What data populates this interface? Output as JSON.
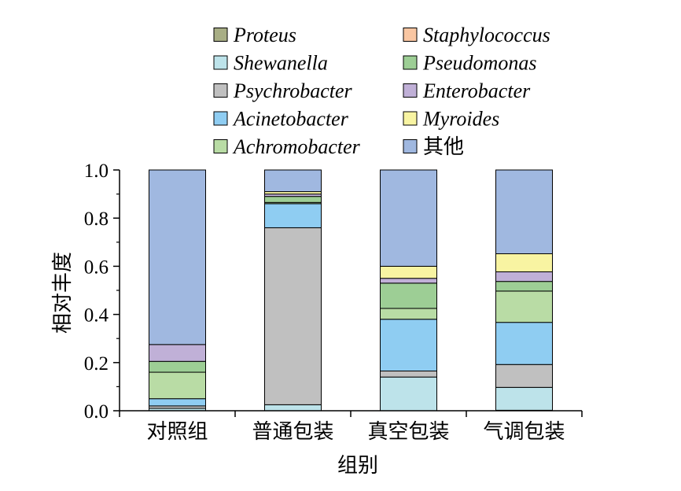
{
  "chart_data": {
    "type": "bar",
    "stacked": true,
    "categories": [
      "对照组",
      "普通包装",
      "真空包装",
      "气调包装"
    ],
    "xlabel": "组别",
    "ylabel": "相对丰度",
    "ylim": [
      0,
      1.0
    ],
    "yticks": [
      "0.0",
      "0.2",
      "0.4",
      "0.6",
      "0.8",
      "1.0"
    ],
    "legend_position": "top",
    "series": [
      {
        "name": "Proteus",
        "color": "#A8AE85",
        "italic": true,
        "values": [
          0.0,
          0.0,
          0.0,
          0.002
        ]
      },
      {
        "name": "Shewanella",
        "color": "#BDE3EA",
        "italic": true,
        "values": [
          0.01,
          0.025,
          0.14,
          0.095
        ]
      },
      {
        "name": "Psychrobacter",
        "color": "#C0C0C0",
        "italic": true,
        "values": [
          0.01,
          0.735,
          0.025,
          0.095
        ]
      },
      {
        "name": "Acinetobacter",
        "color": "#8FCDF2",
        "italic": true,
        "values": [
          0.03,
          0.1,
          0.215,
          0.175
        ]
      },
      {
        "name": "Achromobacter",
        "color": "#B9DCA5",
        "italic": true,
        "values": [
          0.11,
          0.005,
          0.045,
          0.13
        ]
      },
      {
        "name": "Staphylococcus",
        "color": "#F9C6A2",
        "italic": true,
        "values": [
          0.0,
          0.0,
          0.0,
          0.0
        ]
      },
      {
        "name": "Pseudomonas",
        "color": "#9DCE95",
        "italic": true,
        "values": [
          0.045,
          0.025,
          0.105,
          0.04
        ]
      },
      {
        "name": "Enterobacter",
        "color": "#C0B0D7",
        "italic": true,
        "values": [
          0.07,
          0.01,
          0.02,
          0.04
        ]
      },
      {
        "name": "Myroides",
        "color": "#F8F4A2",
        "italic": true,
        "values": [
          0.0,
          0.01,
          0.05,
          0.075
        ]
      },
      {
        "name": "其他",
        "color": "#A0B8E0",
        "italic": false,
        "values": [
          0.725,
          0.09,
          0.4,
          0.348
        ]
      }
    ],
    "legend_order": [
      [
        "Proteus",
        "Staphylococcus"
      ],
      [
        "Shewanella",
        "Pseudomonas"
      ],
      [
        "Psychrobacter",
        "Enterobacter"
      ],
      [
        "Acinetobacter",
        "Myroides"
      ],
      [
        "Achromobacter",
        "其他"
      ]
    ]
  }
}
